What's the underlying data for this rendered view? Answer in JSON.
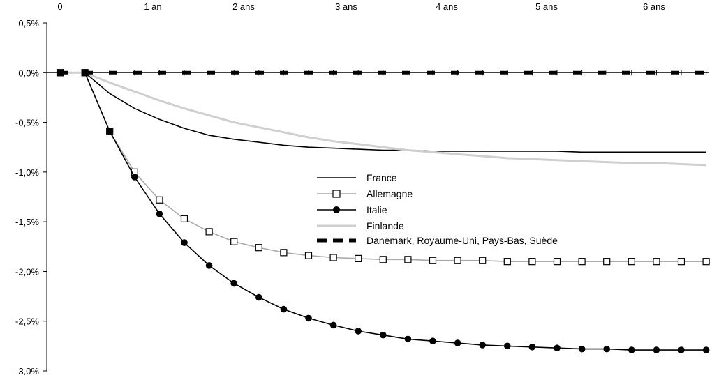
{
  "chart_data": {
    "type": "line",
    "title": "",
    "xlabel": "",
    "ylabel": "",
    "x_tick_labels": [
      "0",
      "1 an",
      "2 ans",
      "3 ans",
      "4 ans",
      "5 ans",
      "6 ans"
    ],
    "y_tick_labels": [
      "0,5%",
      "0,0%",
      "-0,5%",
      "-1,0%",
      "-1,5%",
      "-2,0%",
      "-2,5%",
      "-3,0%"
    ],
    "ylim": [
      -3.0,
      0.5
    ],
    "xlim": [
      0,
      26
    ],
    "y_ticks": [
      0.5,
      0.0,
      -0.5,
      -1.0,
      -1.5,
      -2.0,
      -2.5,
      -3.0
    ],
    "x_quarters": [
      0,
      1,
      2,
      3,
      4,
      5,
      6,
      7,
      8,
      9,
      10,
      11,
      12,
      13,
      14,
      15,
      16,
      17,
      18,
      19,
      20,
      21,
      22,
      23,
      24,
      25,
      26
    ],
    "legend_position": "center-right",
    "grid": false,
    "series": [
      {
        "name": "France",
        "color": "#000000",
        "marker": "none",
        "dash": "solid",
        "values": [
          0,
          0,
          -0.21,
          -0.36,
          -0.47,
          -0.56,
          -0.63,
          -0.67,
          -0.7,
          -0.73,
          -0.75,
          -0.76,
          -0.77,
          -0.78,
          -0.78,
          -0.79,
          -0.79,
          -0.79,
          -0.79,
          -0.79,
          -0.79,
          -0.8,
          -0.8,
          -0.8,
          -0.8,
          -0.8,
          -0.8
        ]
      },
      {
        "name": "Allemagne",
        "color": "#aaaaaa",
        "marker": "square-open",
        "dash": "solid",
        "values": [
          0,
          0,
          -0.59,
          -1.0,
          -1.28,
          -1.47,
          -1.6,
          -1.7,
          -1.76,
          -1.81,
          -1.84,
          -1.86,
          -1.87,
          -1.88,
          -1.88,
          -1.89,
          -1.89,
          -1.89,
          -1.9,
          -1.9,
          -1.9,
          -1.9,
          -1.9,
          -1.9,
          -1.9,
          -1.9,
          -1.9
        ]
      },
      {
        "name": "Italie",
        "color": "#000000",
        "marker": "circle-filled",
        "dash": "solid",
        "values": [
          0,
          0,
          -0.59,
          -1.05,
          -1.42,
          -1.71,
          -1.94,
          -2.12,
          -2.26,
          -2.38,
          -2.47,
          -2.54,
          -2.6,
          -2.64,
          -2.68,
          -2.7,
          -2.72,
          -2.74,
          -2.75,
          -2.76,
          -2.77,
          -2.78,
          -2.78,
          -2.79,
          -2.79,
          -2.79,
          -2.79
        ]
      },
      {
        "name": "Finlande",
        "color": "#cfcfcf",
        "marker": "none",
        "dash": "solid",
        "values": [
          0,
          0,
          -0.1,
          -0.19,
          -0.28,
          -0.36,
          -0.43,
          -0.5,
          -0.55,
          -0.6,
          -0.65,
          -0.69,
          -0.72,
          -0.75,
          -0.78,
          -0.8,
          -0.82,
          -0.84,
          -0.86,
          -0.87,
          -0.88,
          -0.89,
          -0.9,
          -0.91,
          -0.91,
          -0.92,
          -0.93
        ]
      },
      {
        "name": "Danemark, Royaume-Uni, Pays-Bas, Suède",
        "color": "#000000",
        "marker": "none",
        "dash": "dashed",
        "values": [
          0,
          0,
          0,
          0,
          0,
          0,
          0,
          0,
          0,
          0,
          0,
          0,
          0,
          0,
          0,
          0,
          0,
          0,
          0,
          0,
          0,
          0,
          0,
          0,
          0,
          0,
          0
        ]
      }
    ]
  }
}
